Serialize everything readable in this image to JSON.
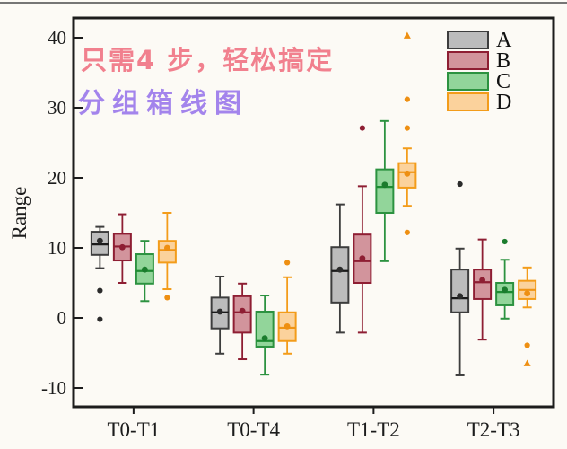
{
  "page": {
    "background": "#fcfaf5",
    "annotation_line1": "只需4 步，轻松搞定",
    "annotation_line2": "分组箱线图",
    "annotation_colors": {
      "line1": "#f1808e",
      "line2": "#a384ec"
    }
  },
  "chart_data": {
    "type": "boxplot",
    "title": "",
    "ylabel": "Range",
    "xlabel": "",
    "ylim": [
      -13,
      43
    ],
    "yticks": [
      40,
      30,
      20,
      10,
      0,
      -10
    ],
    "grid": false,
    "legend_position": "top-right",
    "categories": [
      "T0-T1",
      "T0-T4",
      "T1-T2",
      "T2-T3"
    ],
    "legend": [
      {
        "label": "A",
        "fill": "#bcbcbc",
        "stroke": "#3d3d3d"
      },
      {
        "label": "B",
        "fill": "#d2949c",
        "stroke": "#8e1e33"
      },
      {
        "label": "C",
        "fill": "#92d59a",
        "stroke": "#2c9240"
      },
      {
        "label": "D",
        "fill": "#fbd29c",
        "stroke": "#f39c1a"
      }
    ],
    "series": [
      {
        "name": "A",
        "fill": "#bcbcbc",
        "stroke": "#3d3d3d",
        "median_color": "#1a1a1a",
        "mean_color": "#2b2b2b",
        "boxes": [
          {
            "category": "T0-T1",
            "whisker_low": 7.1,
            "q1": 9.0,
            "median": 10.5,
            "q3": 12.3,
            "whisker_high": 13.0,
            "mean": 11.0,
            "outliers": [
              {
                "value": 3.9,
                "marker": "circle"
              },
              {
                "value": -0.2,
                "marker": "circle"
              }
            ]
          },
          {
            "category": "T0-T4",
            "whisker_low": -5.1,
            "q1": -1.5,
            "median": 0.8,
            "q3": 2.9,
            "whisker_high": 5.9,
            "mean": 0.9,
            "outliers": []
          },
          {
            "category": "T1-T2",
            "whisker_low": -2.1,
            "q1": 2.2,
            "median": 6.7,
            "q3": 10.1,
            "whisker_high": 16.2,
            "mean": 6.9,
            "outliers": []
          },
          {
            "category": "T2-T3",
            "whisker_low": -8.2,
            "q1": 0.8,
            "median": 2.8,
            "q3": 6.9,
            "whisker_high": 9.9,
            "mean": 3.1,
            "outliers": [
              {
                "value": 19.1,
                "marker": "circle"
              }
            ]
          }
        ]
      },
      {
        "name": "B",
        "fill": "#d2949c",
        "stroke": "#8e1e33",
        "median_color": "#8e1e33",
        "mean_color": "#8e1e33",
        "boxes": [
          {
            "category": "T0-T1",
            "whisker_low": 5.0,
            "q1": 8.2,
            "median": 10.2,
            "q3": 12.0,
            "whisker_high": 14.8,
            "mean": 10.1,
            "outliers": []
          },
          {
            "category": "T0-T4",
            "whisker_low": -5.9,
            "q1": -2.1,
            "median": 0.8,
            "q3": 3.1,
            "whisker_high": 4.9,
            "mean": 1.0,
            "outliers": []
          },
          {
            "category": "T1-T2",
            "whisker_low": -2.1,
            "q1": 5.0,
            "median": 8.1,
            "q3": 11.9,
            "whisker_high": 18.8,
            "mean": 8.5,
            "outliers": [
              {
                "value": 27.1,
                "marker": "circle"
              }
            ]
          },
          {
            "category": "T2-T3",
            "whisker_low": -3.1,
            "q1": 2.7,
            "median": 5.1,
            "q3": 6.9,
            "whisker_high": 11.2,
            "mean": 5.4,
            "outliers": []
          }
        ]
      },
      {
        "name": "C",
        "fill": "#92d59a",
        "stroke": "#2c9240",
        "median_color": "#1f8c33",
        "mean_color": "#1b7c2d",
        "boxes": [
          {
            "category": "T0-T1",
            "whisker_low": 2.4,
            "q1": 4.9,
            "median": 6.7,
            "q3": 9.1,
            "whisker_high": 11.0,
            "mean": 6.9,
            "outliers": []
          },
          {
            "category": "T0-T4",
            "whisker_low": -8.1,
            "q1": -4.1,
            "median": -3.3,
            "q3": 0.9,
            "whisker_high": 3.2,
            "mean": -2.9,
            "outliers": []
          },
          {
            "category": "T1-T2",
            "whisker_low": 8.1,
            "q1": 15.0,
            "median": 18.7,
            "q3": 21.2,
            "whisker_high": 28.1,
            "mean": 19.0,
            "outliers": []
          },
          {
            "category": "T2-T3",
            "whisker_low": -0.1,
            "q1": 1.8,
            "median": 3.7,
            "q3": 5.0,
            "whisker_high": 8.3,
            "mean": 4.0,
            "outliers": [
              {
                "value": 10.9,
                "marker": "circle"
              }
            ]
          }
        ]
      },
      {
        "name": "D",
        "fill": "#fbd29c",
        "stroke": "#f39c1a",
        "median_color": "#ef9415",
        "mean_color": "#ee8f12",
        "boxes": [
          {
            "category": "T0-T1",
            "whisker_low": 4.1,
            "q1": 7.9,
            "median": 9.7,
            "q3": 11.0,
            "whisker_high": 15.0,
            "mean": 10.0,
            "outliers": [
              {
                "value": 2.9,
                "marker": "circle"
              }
            ]
          },
          {
            "category": "T0-T4",
            "whisker_low": -5.1,
            "q1": -3.3,
            "median": -1.4,
            "q3": 0.8,
            "whisker_high": 5.8,
            "mean": -1.2,
            "outliers": [
              {
                "value": 7.9,
                "marker": "circle"
              }
            ]
          },
          {
            "category": "T1-T2",
            "whisker_low": 16.0,
            "q1": 18.6,
            "median": 20.8,
            "q3": 22.1,
            "whisker_high": 24.2,
            "mean": 20.6,
            "outliers": [
              {
                "value": 40.3,
                "marker": "triangle"
              },
              {
                "value": 31.2,
                "marker": "circle"
              },
              {
                "value": 27.1,
                "marker": "circle"
              },
              {
                "value": 12.2,
                "marker": "circle"
              }
            ]
          },
          {
            "category": "T2-T3",
            "whisker_low": 1.5,
            "q1": 2.7,
            "median": 4.0,
            "q3": 5.3,
            "whisker_high": 7.2,
            "mean": 3.5,
            "outliers": [
              {
                "value": -3.9,
                "marker": "circle"
              },
              {
                "value": -6.5,
                "marker": "triangle"
              }
            ]
          }
        ]
      }
    ]
  }
}
